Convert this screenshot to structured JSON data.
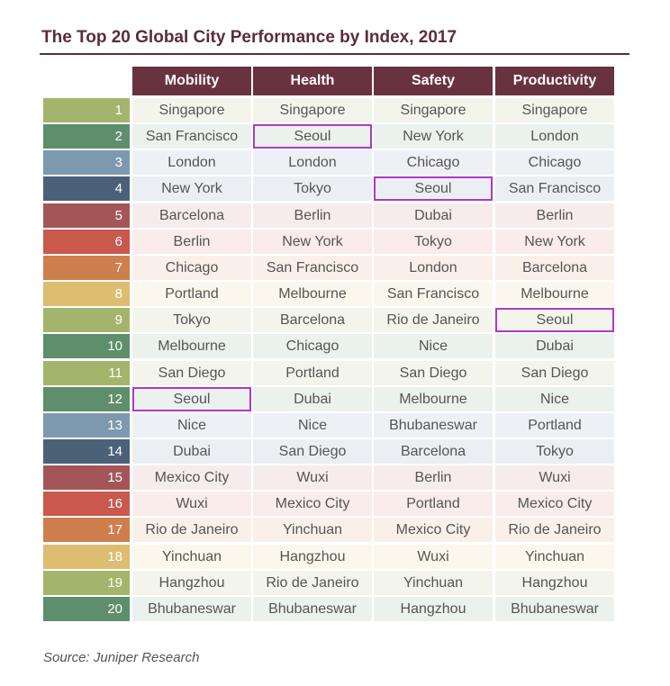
{
  "title": "The Top 20 Global City Performance by Index, 2017",
  "source": "Source: Juniper Research",
  "colors": {
    "title": "#5a2d3a",
    "header_bg": "#69323f",
    "highlight_border": "#b038c8",
    "rank_colors": [
      "#a3b56c",
      "#5e8e6c",
      "#7d99b0",
      "#4a6178",
      "#a35658",
      "#c9584d",
      "#cf7e4d",
      "#dcbd72",
      "#a3b56c",
      "#5e8e6c",
      "#a3b56c",
      "#5e8e6c",
      "#7d99b0",
      "#4a6178",
      "#a35658",
      "#c9584d",
      "#cf7e4d",
      "#dcbd72",
      "#a3b56c",
      "#5e8e6c"
    ],
    "row_tints": [
      "#f3f5ec",
      "#ebf2ee",
      "#edf1f5",
      "#ebeff3",
      "#f6ecec",
      "#f9ecea",
      "#faf0ea",
      "#fcf7ec",
      "#f3f5ec",
      "#ebf2ee",
      "#f3f5ec",
      "#ebf2ee",
      "#edf1f5",
      "#ebeff3",
      "#f6ecec",
      "#f9ecea",
      "#faf0ea",
      "#fcf7ec",
      "#f3f5ec",
      "#ebf2ee"
    ]
  },
  "chart_data": {
    "type": "table",
    "title": "The Top 20 Global City Performance by Index, 2017",
    "columns": [
      "Mobility",
      "Health",
      "Safety",
      "Productivity"
    ],
    "ranks": [
      "1",
      "2",
      "3",
      "4",
      "5",
      "6",
      "7",
      "8",
      "9",
      "10",
      "11",
      "12",
      "13",
      "14",
      "15",
      "16",
      "17",
      "18",
      "19",
      "20"
    ],
    "rows": [
      [
        "Singapore",
        "Singapore",
        "Singapore",
        "Singapore"
      ],
      [
        "San Francisco",
        "Seoul",
        "New York",
        "London"
      ],
      [
        "London",
        "London",
        "Chicago",
        "Chicago"
      ],
      [
        "New York",
        "Tokyo",
        "Seoul",
        "San Francisco"
      ],
      [
        "Barcelona",
        "Berlin",
        "Dubai",
        "Berlin"
      ],
      [
        "Berlin",
        "New York",
        "Tokyo",
        "New York"
      ],
      [
        "Chicago",
        "San Francisco",
        "London",
        "Barcelona"
      ],
      [
        "Portland",
        "Melbourne",
        "San Francisco",
        "Melbourne"
      ],
      [
        "Tokyo",
        "Barcelona",
        "Rio de Janeiro",
        "Seoul"
      ],
      [
        "Melbourne",
        "Chicago",
        "Nice",
        "Dubai"
      ],
      [
        "San Diego",
        "Portland",
        "San Diego",
        "San Diego"
      ],
      [
        "Seoul",
        "Dubai",
        "Melbourne",
        "Nice"
      ],
      [
        "Nice",
        "Nice",
        "Bhubaneswar",
        "Portland"
      ],
      [
        "Dubai",
        "San Diego",
        "Barcelona",
        "Tokyo"
      ],
      [
        "Mexico City",
        "Wuxi",
        "Berlin",
        "Wuxi"
      ],
      [
        "Wuxi",
        "Mexico City",
        "Portland",
        "Mexico City"
      ],
      [
        "Rio de Janeiro",
        "Yinchuan",
        "Mexico City",
        "Rio de Janeiro"
      ],
      [
        "Yinchuan",
        "Hangzhou",
        "Wuxi",
        "Yinchuan"
      ],
      [
        "Hangzhou",
        "Rio de Janeiro",
        "Yinchuan",
        "Hangzhou"
      ],
      [
        "Bhubaneswar",
        "Bhubaneswar",
        "Hangzhou",
        "Bhubaneswar"
      ]
    ],
    "highlighted_city": "Seoul"
  }
}
